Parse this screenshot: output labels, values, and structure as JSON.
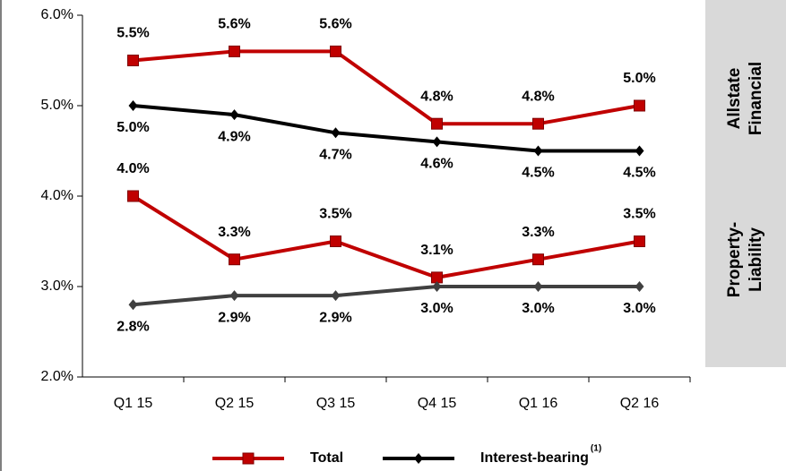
{
  "chart_data": {
    "type": "line",
    "categories": [
      "Q1 15",
      "Q2 15",
      "Q3 15",
      "Q4 15",
      "Q1 16",
      "Q2 16"
    ],
    "ylim": [
      2,
      6
    ],
    "yticks": [
      {
        "value": 2,
        "label": "2.0%"
      },
      {
        "value": 3,
        "label": "3.0%"
      },
      {
        "value": 4,
        "label": "4.0%"
      },
      {
        "value": 5,
        "label": "5.0%"
      },
      {
        "value": 6,
        "label": "6.0%"
      }
    ],
    "series": [
      {
        "color": "#c00000",
        "marker": "square",
        "values": [
          5.5,
          5.6,
          5.6,
          4.8,
          4.8,
          5.0
        ],
        "value_labels": [
          "5.5%",
          "5.6%",
          "5.6%",
          "4.8%",
          "4.8%",
          "5.0%"
        ]
      },
      {
        "color": "#000000",
        "marker": "diamond",
        "values": [
          5.0,
          4.9,
          4.7,
          4.6,
          4.5,
          4.5
        ],
        "value_labels": [
          "5.0%",
          "4.9%",
          "4.7%",
          "4.6%",
          "4.5%",
          "4.5%"
        ]
      },
      {
        "color": "#c00000",
        "marker": "square",
        "values": [
          4.0,
          3.3,
          3.5,
          3.1,
          3.3,
          3.5
        ],
        "value_labels": [
          "4.0%",
          "3.3%",
          "3.5%",
          "3.1%",
          "3.3%",
          "3.5%"
        ]
      },
      {
        "color": "#404040",
        "marker": "diamond",
        "values": [
          2.8,
          2.9,
          2.9,
          3.0,
          3.0,
          3.0
        ],
        "value_labels": [
          "2.8%",
          "2.9%",
          "2.9%",
          "3.0%",
          "3.0%",
          "3.0%"
        ]
      }
    ],
    "legend": [
      {
        "label": "Total",
        "color": "#c00000",
        "marker": "square"
      },
      {
        "label": "Interest-bearing",
        "superscript": "(1)",
        "color": "#000000",
        "marker": "diamond"
      }
    ],
    "panels": [
      {
        "lines": [
          "Allstate",
          "Financial"
        ]
      },
      {
        "lines": [
          "Property-",
          "Liability"
        ]
      }
    ]
  }
}
